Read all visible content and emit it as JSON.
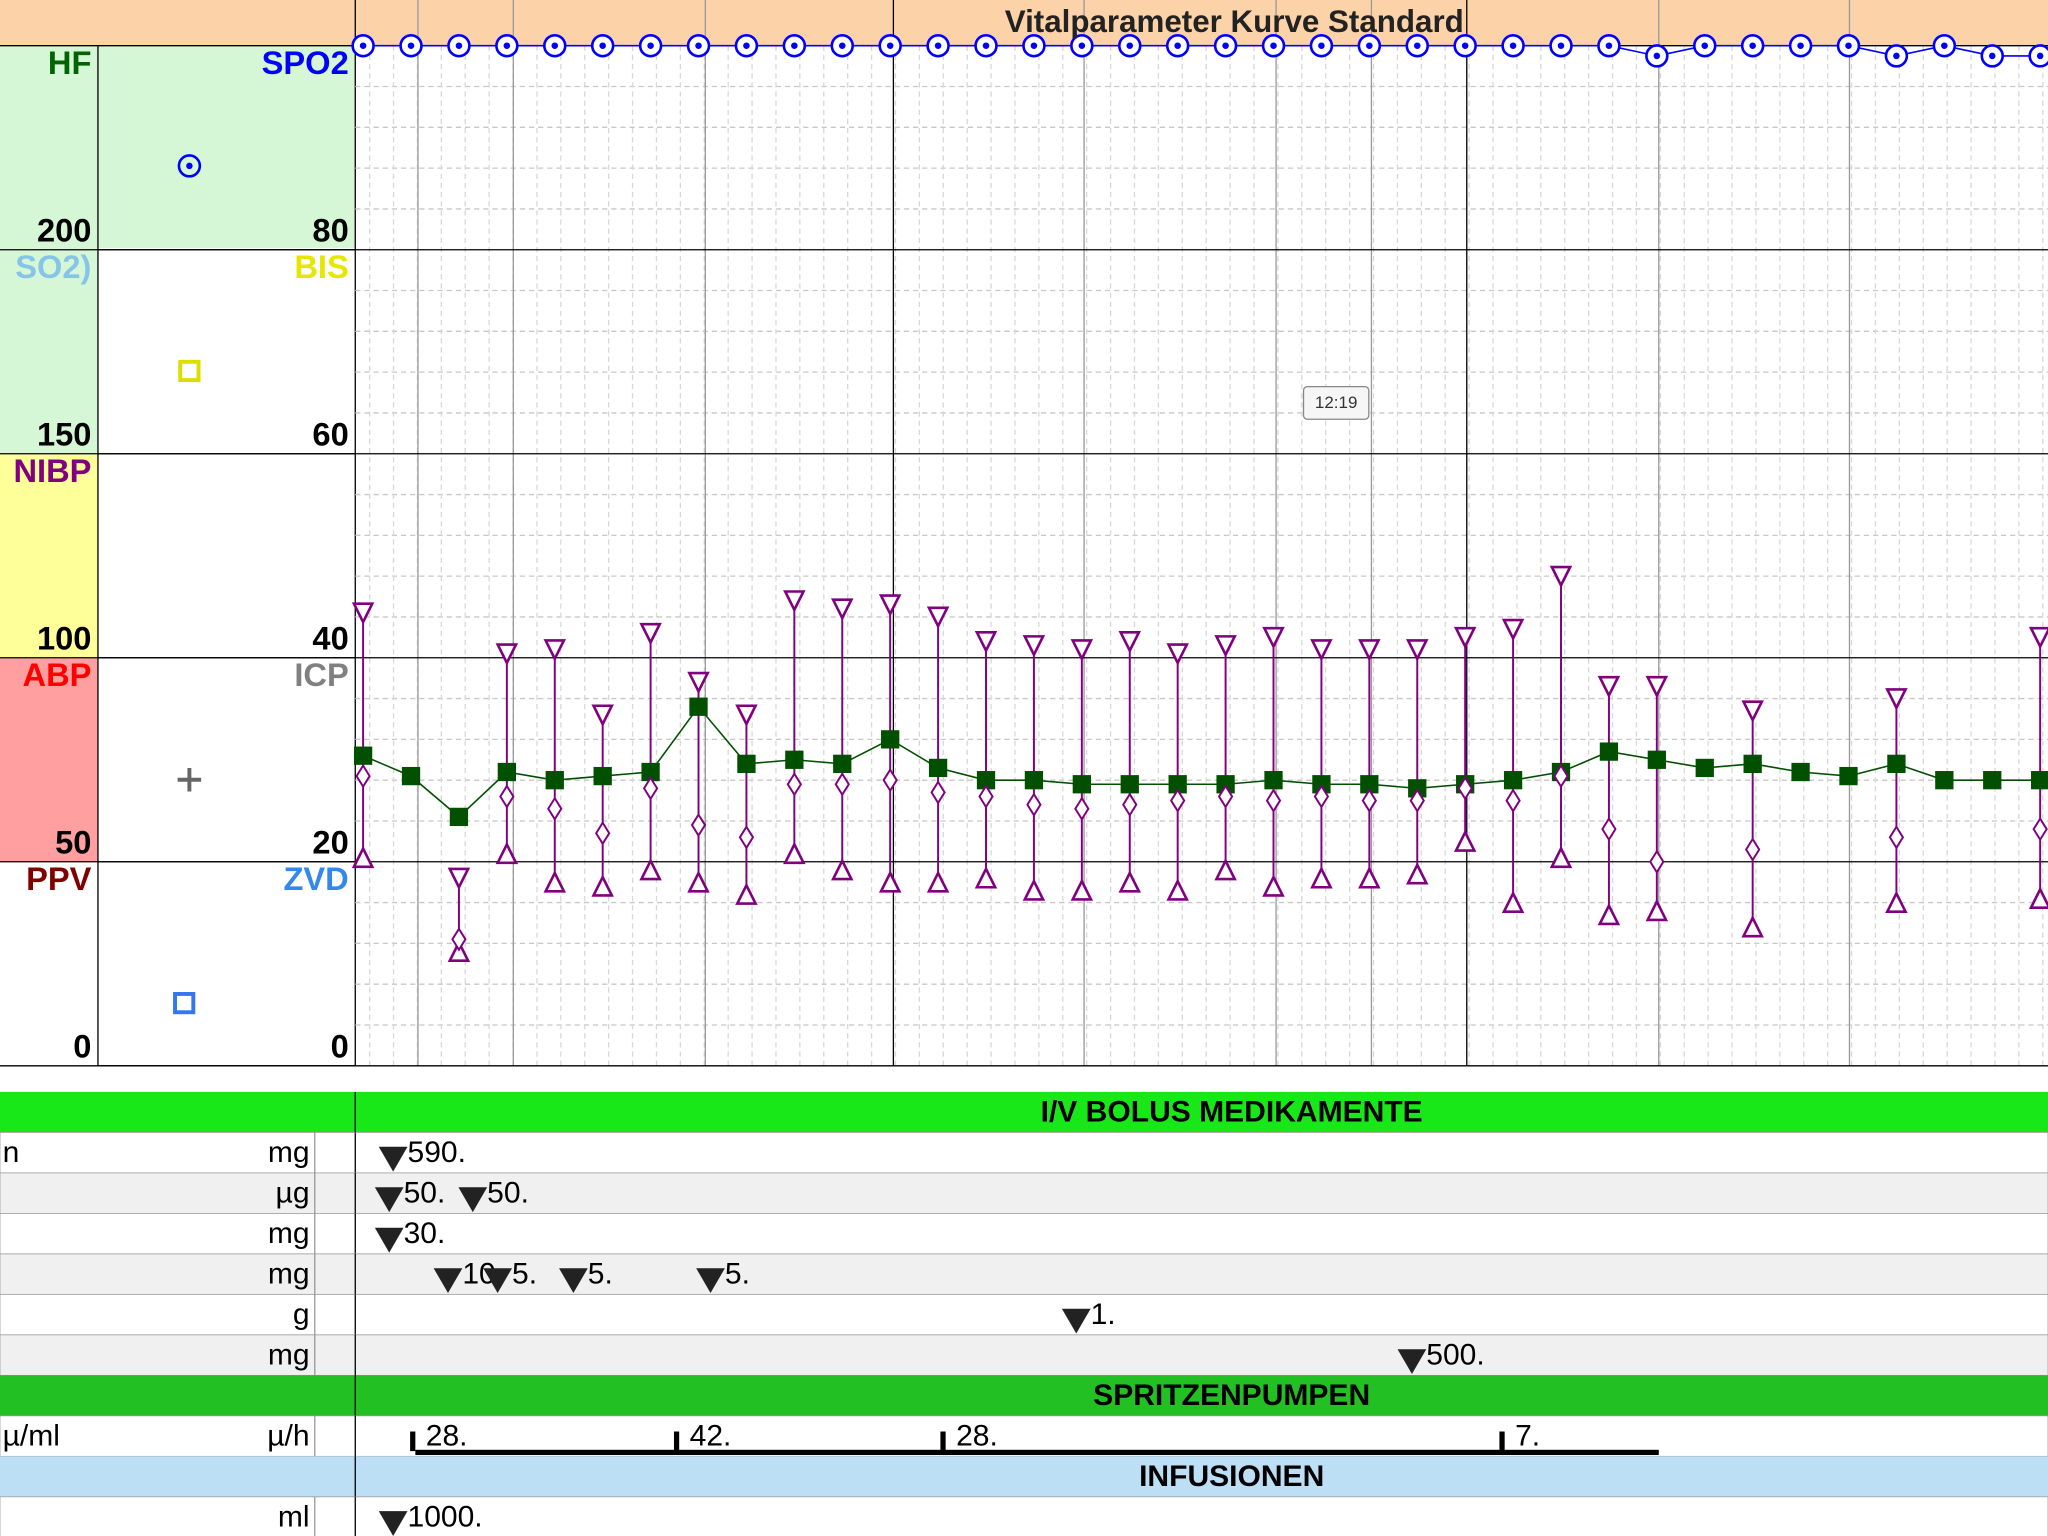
{
  "chart_data": {
    "type": "line",
    "title": "Vitalparameter Kurve Standard",
    "band_labels_left": [
      "HF",
      "SO2)",
      "NIBP",
      "ABP",
      "PPV"
    ],
    "band_labels_right": [
      "SPO2",
      "BIS",
      null,
      "ICP",
      "ZVD"
    ],
    "ylim": [
      0,
      250
    ],
    "yticks": [
      0,
      50,
      100,
      150,
      200
    ],
    "y2lim": [
      0,
      100
    ],
    "y2ticks": [
      0,
      20,
      40,
      60,
      80
    ],
    "grid": true,
    "categories": [
      null,
      null,
      null,
      null,
      null,
      null,
      null,
      null,
      null,
      null,
      null,
      null,
      null,
      null,
      null,
      null,
      null,
      null,
      null,
      null,
      null,
      null,
      null,
      null,
      null,
      null,
      null,
      null,
      null,
      null,
      null,
      null,
      null,
      null,
      null,
      null
    ],
    "series": [
      {
        "name": "HF",
        "color": "#005000",
        "marker": "square",
        "values": [
          76,
          71,
          61,
          72,
          70,
          71,
          72,
          88,
          74,
          75,
          74,
          80,
          73,
          70,
          70,
          69,
          69,
          69,
          69,
          70,
          69,
          69,
          68,
          69,
          70,
          72,
          77,
          75,
          73,
          74,
          72,
          71,
          74,
          70,
          70,
          70
        ]
      },
      {
        "name": "NIBP sys",
        "color": "#800080",
        "marker": "down",
        "values": [
          111,
          null,
          46,
          101,
          102,
          86,
          106,
          94,
          86,
          114,
          112,
          113,
          110,
          104,
          103,
          102,
          104,
          101,
          103,
          105,
          102,
          102,
          102,
          105,
          107,
          120,
          93,
          93,
          null,
          87,
          null,
          null,
          90,
          null,
          null,
          105
        ]
      },
      {
        "name": "NIBP dia",
        "color": "#800080",
        "marker": "up",
        "values": [
          51,
          null,
          28,
          52,
          45,
          44,
          48,
          45,
          42,
          52,
          48,
          45,
          45,
          46,
          43,
          43,
          45,
          43,
          48,
          44,
          46,
          46,
          47,
          55,
          40,
          51,
          37,
          38,
          null,
          34,
          null,
          null,
          40,
          null,
          null,
          41
        ]
      },
      {
        "name": "NIBP mean",
        "color": "#800080",
        "marker": "diamond",
        "values": [
          71,
          null,
          31,
          66,
          63,
          57,
          68,
          59,
          56,
          69,
          69,
          70,
          67,
          66,
          64,
          63,
          64,
          65,
          66,
          65,
          66,
          65,
          65,
          68,
          65,
          71,
          58,
          50,
          null,
          53,
          null,
          null,
          56,
          null,
          null,
          58
        ]
      },
      {
        "name": "SPO2",
        "color": "#0000ff",
        "marker": "circle",
        "axis": "y2",
        "values": [
          100,
          100,
          100,
          100,
          100,
          100,
          100,
          100,
          100,
          100,
          100,
          100,
          100,
          100,
          100,
          100,
          100,
          100,
          100,
          100,
          100,
          100,
          100,
          100,
          100,
          100,
          100,
          99,
          100,
          100,
          100,
          100,
          99,
          100,
          99,
          99
        ]
      }
    ]
  },
  "tooltip": "12:19",
  "bolus": {
    "title": "I/V BOLUS MEDIKAMENTE",
    "rows": [
      {
        "label": "n",
        "unit": "mg",
        "entries": [
          "590."
        ]
      },
      {
        "unit": "µg",
        "entries": [
          "50.",
          "50."
        ]
      },
      {
        "unit": "mg",
        "entries": [
          "30."
        ]
      },
      {
        "unit": "mg",
        "entries": [
          "10.",
          "5.",
          "5.",
          "5."
        ]
      },
      {
        "unit": "g",
        "entries": [
          "1."
        ]
      },
      {
        "unit": "mg",
        "entries": [
          "500."
        ]
      }
    ]
  },
  "pumps": {
    "title": "SPRITZENPUMPEN",
    "rows": [
      {
        "label": "µ/ml",
        "unit": "µ/h",
        "entries": [
          "28.",
          "42.",
          "28.",
          "7."
        ]
      }
    ]
  },
  "infusions": {
    "title": "INFUSIONEN",
    "rows": [
      {
        "unit": "ml",
        "entries": [
          "1000."
        ]
      }
    ]
  }
}
